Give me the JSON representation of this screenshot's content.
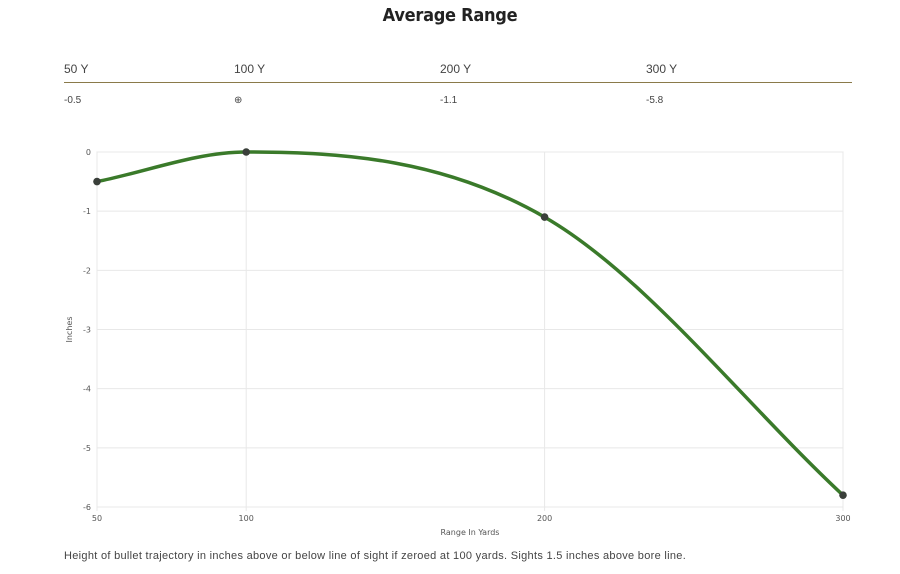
{
  "page": {
    "title": "Average Range",
    "caption": "Height of bullet trajectory in inches above or below line of sight if zeroed at 100 yards. Sights 1.5 inches above bore line."
  },
  "range_table": {
    "headers": [
      "50 Y",
      "100 Y",
      "200 Y",
      "300 Y"
    ],
    "values": [
      "-0.5",
      "⊕",
      "-1.1",
      "-5.8"
    ]
  },
  "chart_data": {
    "type": "line",
    "title": "",
    "xlabel": "Range In Yards",
    "ylabel": "Inches",
    "x": [
      50,
      100,
      200,
      300
    ],
    "series": [
      {
        "values": [
          -0.5,
          0,
          -1.1,
          -5.8
        ],
        "color": "#3a7a2a"
      }
    ],
    "xlim": [
      50,
      300
    ],
    "ylim": [
      -6,
      0
    ],
    "x_ticks": [
      "50",
      "100",
      "200",
      "300"
    ],
    "y_ticks": [
      "0",
      "-1",
      "-2",
      "-3",
      "-4",
      "-5",
      "-6"
    ],
    "grid": true,
    "legend": "none",
    "point_color": "#3a3f3a"
  }
}
